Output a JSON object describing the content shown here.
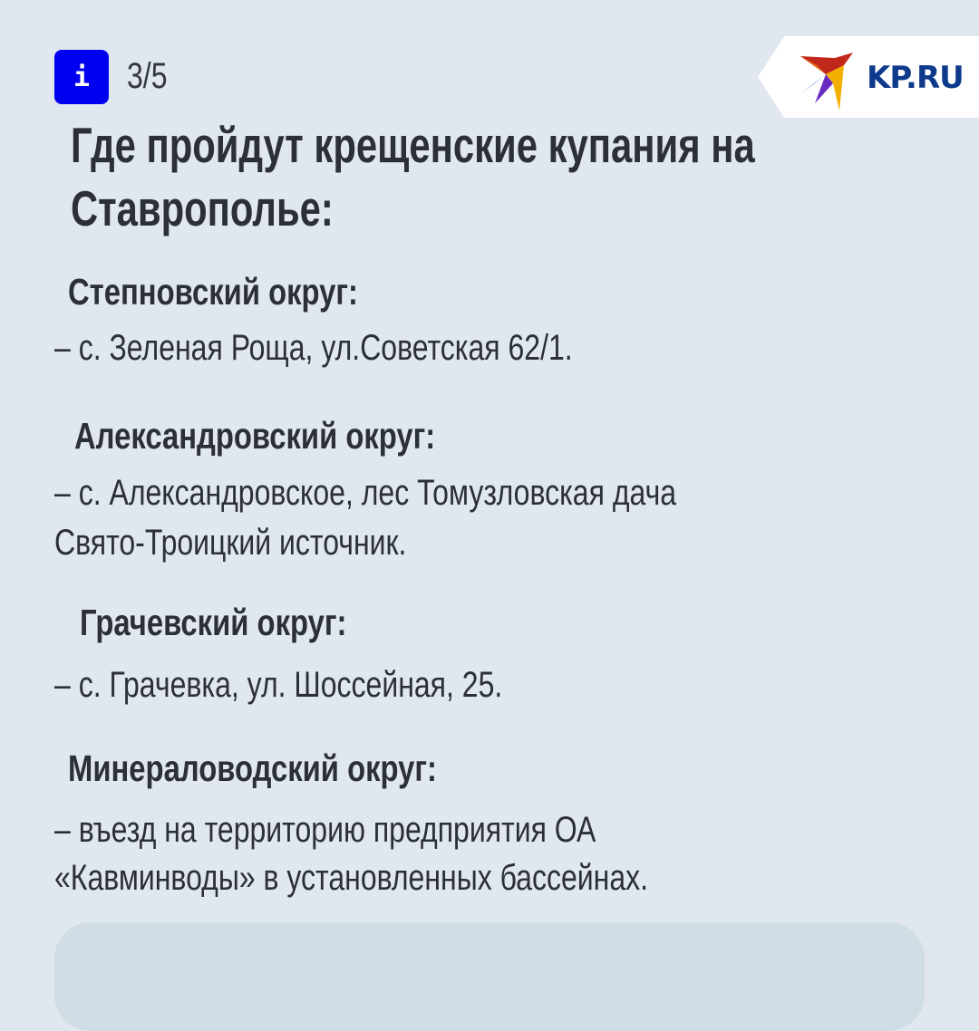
{
  "header": {
    "info_icon_glyph": "i",
    "counter": "3/5",
    "logo_text": "KP.RU",
    "info_color": "#0000f0"
  },
  "title_lines": [
    "Где пройдут крещенские купания на",
    "Ставрополье:"
  ],
  "sections": [
    {
      "heading": "Степновский округ:",
      "lines": [
        "– с. Зеленая Роща, ул.Советская 62/1."
      ]
    },
    {
      "heading": "Александровский округ:",
      "lines": [
        "– с. Александровское, лес Томузловская дача",
        "Свято-Троицкий источник."
      ]
    },
    {
      "heading": "Грачевский округ:",
      "lines": [
        "– с. Грачевка, ул. Шоссейная, 25."
      ]
    },
    {
      "heading": "Минераловодский округ:",
      "lines": [
        "– въезд на территорию предприятия ОА",
        "«Кавминводы» в установленных бассейнах."
      ]
    }
  ]
}
